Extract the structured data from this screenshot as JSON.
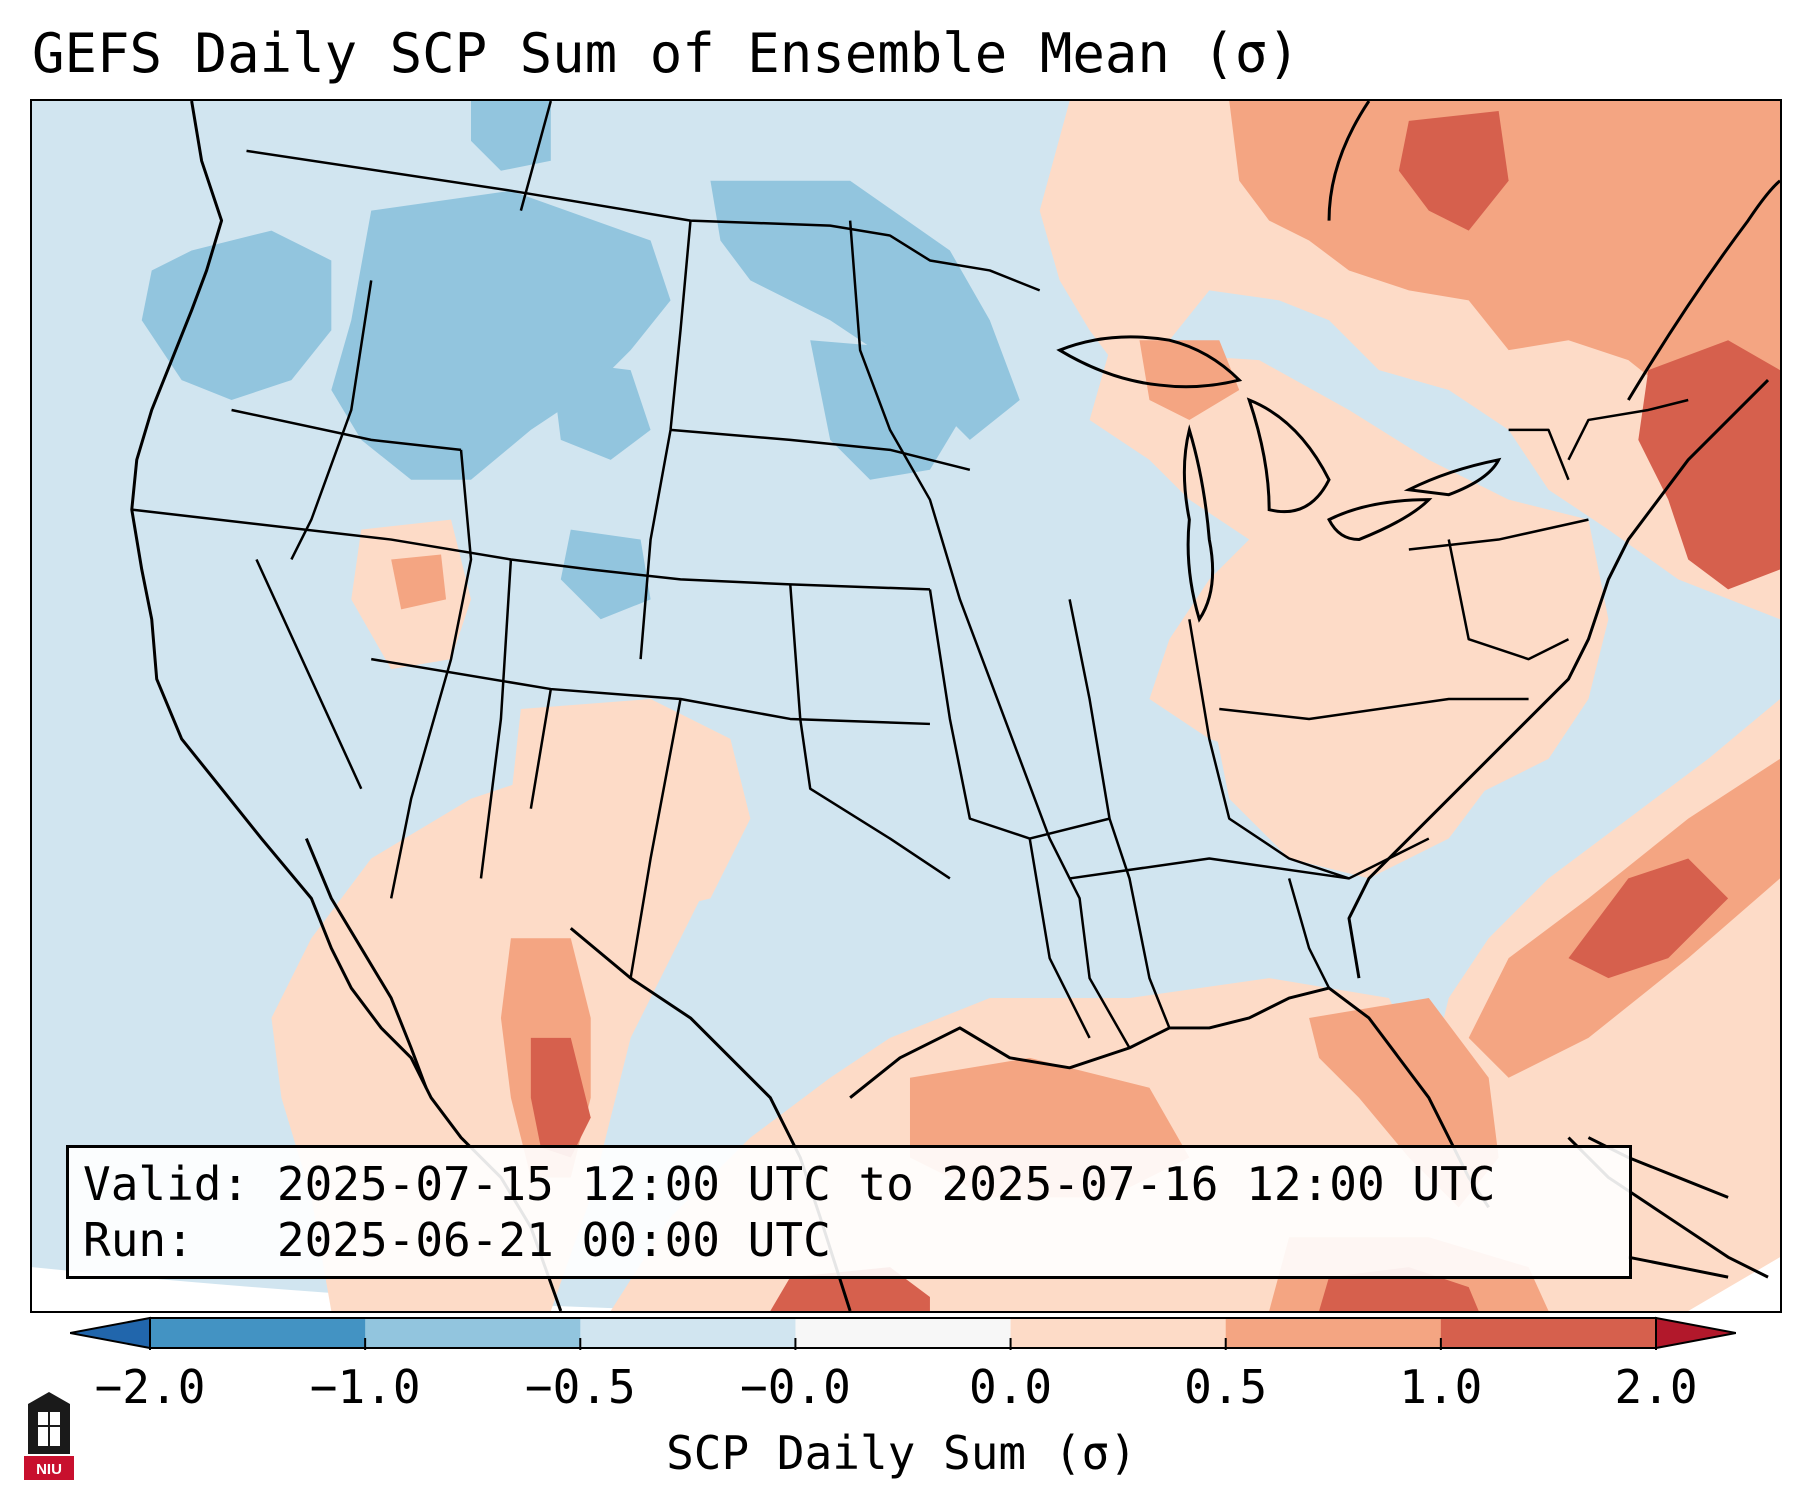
{
  "title": "GEFS Daily SCP Sum of Ensemble Mean (σ)",
  "info": {
    "valid_label": "Valid:",
    "valid_value": "2025-07-15 12:00 UTC to 2025-07-16 12:00 UTC",
    "run_label": "Run:",
    "run_value": "2025-06-21 00:00 UTC"
  },
  "colorbar": {
    "label": "SCP Daily Sum (σ)",
    "ticks": [
      "−2.0",
      "−1.0",
      "−0.5",
      "−0.0",
      "0.0",
      "0.5",
      "1.0",
      "2.0"
    ],
    "colors": [
      "#4393c3",
      "#92c5de",
      "#d1e5f0",
      "#f7f7f7",
      "#fddbc7",
      "#f4a582",
      "#d6604d"
    ],
    "extend_low_color": "#2166ac",
    "extend_high_color": "#b2182b"
  },
  "map": {
    "background_color": "#d1e5f0",
    "regions": [
      {
        "name": "northeast-canada-positive",
        "category": "0.5 to 1.0"
      },
      {
        "name": "new-england-positive",
        "category": "1.0 to 2.0"
      },
      {
        "name": "great-lakes-positive",
        "category": "0.0 to 0.5"
      },
      {
        "name": "ohio-valley-positive",
        "category": "0.0 to 0.5"
      },
      {
        "name": "atlantic-offshore-positive",
        "category": "1.0 to 2.0"
      },
      {
        "name": "gulf-of-mexico-positive",
        "category": "0.5 to 1.0"
      },
      {
        "name": "florida-positive",
        "category": "1.0 to 2.0"
      },
      {
        "name": "southwest-mexico-positive",
        "category": "1.0 to 2.0"
      },
      {
        "name": "northern-plains-negative",
        "category": "-1.0 to -0.5"
      },
      {
        "name": "idaho-montana-negative",
        "category": "-1.0 to -0.5"
      }
    ]
  },
  "logo": {
    "text": "NIU"
  }
}
